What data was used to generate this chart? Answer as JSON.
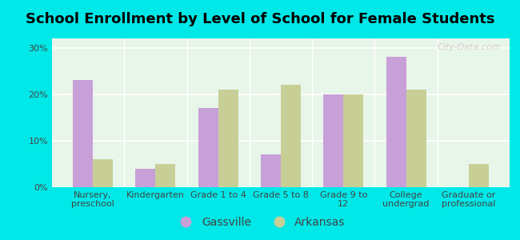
{
  "title": "School Enrollment by Level of School for Female Students",
  "categories": [
    "Nursery,\npreschool",
    "Kindergarten",
    "Grade 1 to 4",
    "Grade 5 to 8",
    "Grade 9 to\n12",
    "College\nundergrad",
    "Graduate or\nprofessional"
  ],
  "gassville": [
    23,
    4,
    17,
    7,
    20,
    28,
    0
  ],
  "arkansas": [
    6,
    5,
    21,
    22,
    20,
    21,
    5
  ],
  "gassville_color": "#c8a0d8",
  "arkansas_color": "#c8cf96",
  "background_outer": "#00e8e8",
  "background_inner": "#e8f5e9",
  "title_fontsize": 13,
  "tick_fontsize": 8,
  "legend_fontsize": 10,
  "ylim": [
    0,
    32
  ],
  "yticks": [
    0,
    10,
    20,
    30
  ],
  "ytick_labels": [
    "0%",
    "10%",
    "20%",
    "30%"
  ],
  "bar_width": 0.32,
  "watermark": "City-Data.com"
}
